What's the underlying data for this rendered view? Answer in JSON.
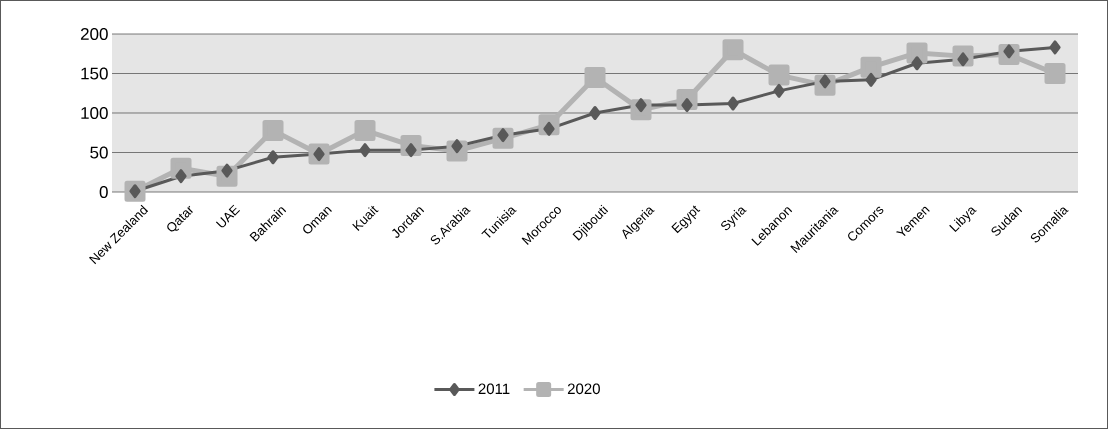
{
  "chart_data": {
    "type": "line",
    "categories": [
      "New Zealand",
      "Qatar",
      "UAE",
      "Bahrain",
      "Oman",
      "Kuait",
      "Jordan",
      "S.Arabia",
      "Tunisia",
      "Morocco",
      "Djibouti",
      "Algeria",
      "Egypt",
      "Syria",
      "Lebanon",
      "Mauritania",
      "Comors",
      "Yemen",
      "Libya",
      "Sudan",
      "Somalia"
    ],
    "series": [
      {
        "name": "2011",
        "color": "#595959",
        "marker": "diamond",
        "values": [
          1,
          20,
          27,
          44,
          48,
          53,
          53,
          58,
          72,
          80,
          100,
          110,
          110,
          112,
          128,
          140,
          142,
          163,
          168,
          178,
          183
        ]
      },
      {
        "name": "2020",
        "color": "#b3b3b3",
        "marker": "square",
        "values": [
          1,
          30,
          20,
          78,
          48,
          78,
          59,
          52,
          68,
          85,
          145,
          104,
          117,
          180,
          148,
          135,
          158,
          176,
          172,
          174,
          150
        ]
      }
    ],
    "ylim": [
      0,
      200
    ],
    "yticks": [
      0,
      50,
      100,
      150,
      200
    ],
    "grid": "y",
    "legend": "bottom",
    "line_style": "solid"
  }
}
